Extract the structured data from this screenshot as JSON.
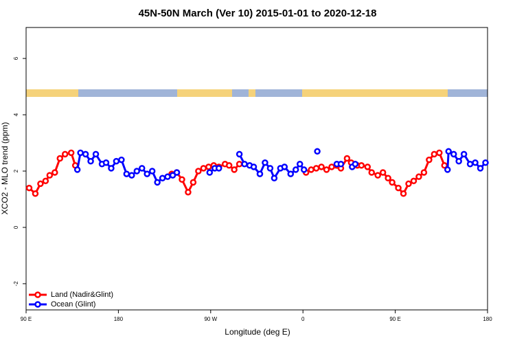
{
  "chart_data": {
    "type": "line",
    "title": "45N-50N March (Ver 10)   2015-01-01 to 2020-12-18",
    "x_label": "Longitude (deg E)",
    "y_label": "XCO2 - MLO trend (ppm)",
    "xlim": [
      90,
      540
    ],
    "xticks": [
      {
        "value": 90,
        "label": "90 E"
      },
      {
        "value": 180,
        "label": "180"
      },
      {
        "value": 270,
        "label": "90 W"
      },
      {
        "value": 360,
        "label": "0"
      },
      {
        "value": 450,
        "label": "90 E"
      },
      {
        "value": 540,
        "label": "180"
      }
    ],
    "ylim": [
      -2.93,
      7.1
    ],
    "yticks": [
      -2,
      0,
      2,
      4,
      6
    ],
    "legend": "bottom-left",
    "series": [
      {
        "name": "Land (Nadir&Glint)",
        "color": "#ff0000",
        "x": [
          93,
          99,
          104,
          109,
          113,
          118,
          123,
          128,
          134,
          138,
          null,
          232,
          237,
          242,
          248,
          253,
          258,
          263,
          268,
          273,
          278,
          284,
          288,
          293,
          298,
          null,
          363,
          368,
          373,
          378,
          383,
          388,
          397,
          403,
          407,
          413,
          417,
          423,
          427,
          433,
          438,
          443,
          447,
          453,
          458,
          463,
          468,
          473,
          478,
          483,
          488,
          493,
          498
        ],
        "values": [
          1.4,
          1.2,
          1.55,
          1.65,
          1.85,
          1.95,
          2.45,
          2.6,
          2.65,
          2.2,
          null,
          1.9,
          1.95,
          1.7,
          1.25,
          1.6,
          2.0,
          2.1,
          2.15,
          2.2,
          2.15,
          2.25,
          2.2,
          2.05,
          2.25,
          null,
          1.95,
          2.05,
          2.1,
          2.15,
          2.05,
          2.15,
          2.1,
          2.45,
          2.3,
          2.2,
          2.2,
          2.15,
          1.95,
          1.85,
          1.95,
          1.75,
          1.6,
          1.4,
          1.2,
          1.55,
          1.65,
          1.8,
          1.95,
          2.4,
          2.6,
          2.65,
          2.2
        ]
      },
      {
        "name": "Ocean (Glint)",
        "color": "#0000ff",
        "x": [
          140,
          143,
          148,
          153,
          158,
          164,
          168,
          173,
          178,
          183,
          188,
          193,
          198,
          203,
          208,
          213,
          218,
          223,
          228,
          233,
          237,
          null,
          269,
          274,
          278,
          null,
          298,
          303,
          308,
          312,
          318,
          323,
          328,
          332,
          338,
          342,
          348,
          353,
          357,
          361,
          null,
          374,
          null,
          393,
          397,
          null,
          408,
          411,
          null,
          501,
          502,
          507,
          512,
          517,
          523,
          528,
          533,
          538
        ],
        "values": [
          2.05,
          2.65,
          2.6,
          2.35,
          2.6,
          2.25,
          2.3,
          2.1,
          2.35,
          2.4,
          1.9,
          1.85,
          2.0,
          2.1,
          1.9,
          2.0,
          1.6,
          1.75,
          1.8,
          1.85,
          1.95,
          null,
          1.95,
          2.1,
          2.1,
          null,
          2.6,
          2.25,
          2.2,
          2.15,
          1.9,
          2.3,
          2.1,
          1.75,
          2.1,
          2.15,
          1.9,
          2.05,
          2.25,
          2.05,
          null,
          2.7,
          null,
          2.25,
          2.25,
          null,
          2.15,
          2.25,
          null,
          2.05,
          2.7,
          2.6,
          2.35,
          2.6,
          2.25,
          2.3,
          2.1,
          2.3
        ]
      }
    ]
  }
}
